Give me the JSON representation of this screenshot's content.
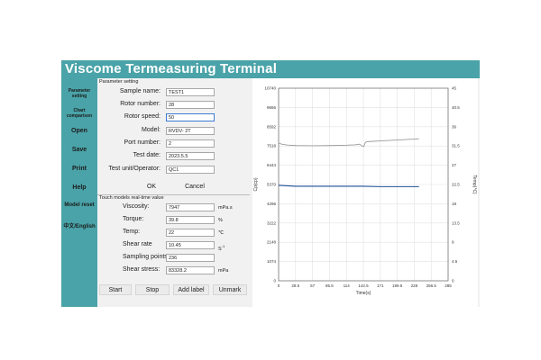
{
  "app": {
    "title": "Viscome Termeasuring Terminal"
  },
  "sidebar": {
    "items": [
      {
        "label_line1": "Parameter",
        "label_line2": "setting"
      },
      {
        "label_line1": "Chart",
        "label_line2": "comparison"
      },
      {
        "label": "Open"
      },
      {
        "label": "Save"
      },
      {
        "label": "Print"
      },
      {
        "label": "Help"
      },
      {
        "label": "Model reset"
      },
      {
        "label": "中文/English"
      }
    ]
  },
  "params": {
    "section_title": "Parameter setting",
    "fields": [
      {
        "label": "Sample name:",
        "value": "TEST1"
      },
      {
        "label": "Rotor number:",
        "value": "28"
      },
      {
        "label": "Rotor speed:",
        "value": "50"
      },
      {
        "label": "Model:",
        "value": "RVDV- 2T"
      },
      {
        "label": "Port number:",
        "value": "2"
      },
      {
        "label": "Test date:",
        "value": "2023.5.5"
      },
      {
        "label": "Test unit/Operator:",
        "value": "QC1"
      }
    ],
    "ok_label": "OK",
    "cancel_label": "Cancel"
  },
  "realtime": {
    "section_title": "Touch models real-time value",
    "fields": [
      {
        "label": "Viscosity:",
        "value": "7947",
        "unit": "mPa.s"
      },
      {
        "label": "Torque:",
        "value": "39.8",
        "unit": "%"
      },
      {
        "label": "Temp:",
        "value": "22",
        "unit": "℃"
      },
      {
        "label": "Shear rate",
        "value": "10.45",
        "unit": "S",
        "unit_sup": "-1"
      },
      {
        "label": "Sampling points:",
        "value": "236",
        "unit": ""
      },
      {
        "label": "Shear stress:",
        "value": "83328.2",
        "unit": "mPa"
      }
    ]
  },
  "actions": {
    "start": "Start",
    "stop": "Stop",
    "add_label": "Add label",
    "unmark": "Unmark"
  },
  "colors": {
    "accent": "#4aa3a8",
    "viscosity_series": "#9a9a9a",
    "temperature_series": "#1f4f9a"
  },
  "chart_data": {
    "type": "line",
    "title": "",
    "xlabel": "Time(s)",
    "ylabel": "Cp(cp)",
    "ylabel_right": "Temp(℃)",
    "xlim": [
      0,
      285
    ],
    "ylim": [
      0,
      10740
    ],
    "ylim_right": [
      0,
      45
    ],
    "x_ticks": [
      "0",
      "28.5",
      "57",
      "85.5",
      "114",
      "142.5",
      "171",
      "199.5",
      "228",
      "256.5",
      "285"
    ],
    "y_ticks": [
      "0",
      "1074",
      "2148",
      "3222",
      "4296",
      "5370",
      "6444",
      "7518",
      "8592",
      "9666",
      "10740"
    ],
    "y_ticks_right": [
      "0",
      "4.5",
      "9",
      "13.5",
      "18",
      "22.5",
      "27",
      "31.5",
      "36",
      "40.5",
      "45"
    ],
    "grid": true,
    "series": [
      {
        "axis": "left",
        "x": [
          0,
          5,
          15,
          30,
          57,
          85,
          114,
          128,
          136,
          140,
          143,
          146,
          150,
          171,
          199,
          228,
          236
        ],
        "y": [
          7680,
          7620,
          7570,
          7540,
          7530,
          7540,
          7560,
          7580,
          7620,
          7520,
          7480,
          7720,
          7760,
          7800,
          7850,
          7900,
          7920
        ]
      },
      {
        "axis": "right",
        "x": [
          0,
          28.5,
          57,
          85.5,
          114,
          142.5,
          171,
          199.5,
          228,
          236
        ],
        "y": [
          22.3,
          22.1,
          22.1,
          22.1,
          22.1,
          22.1,
          22.0,
          22.0,
          22.0,
          22.0
        ]
      }
    ]
  }
}
